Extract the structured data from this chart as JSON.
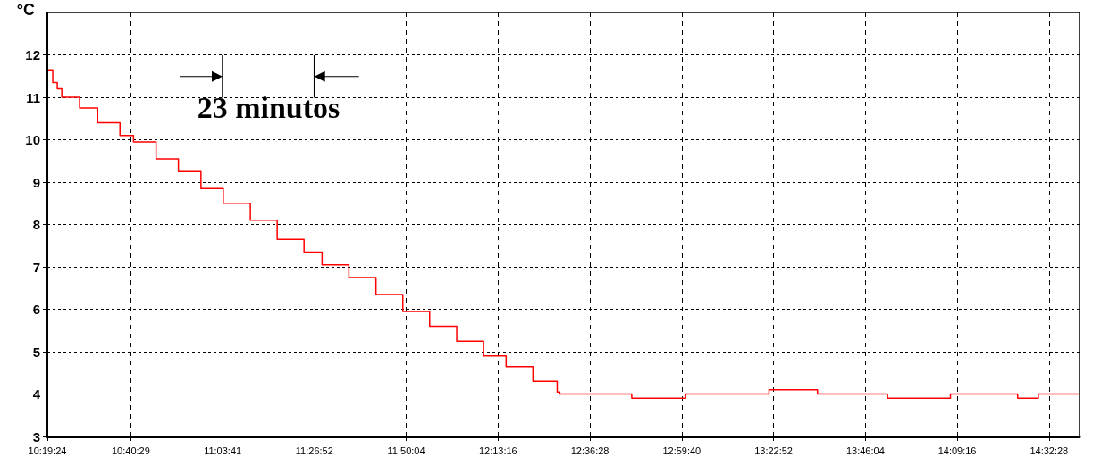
{
  "chart_data": {
    "type": "step",
    "ylabel": "°C",
    "annotations": [
      "23 minutos"
    ],
    "x": [
      10.327,
      10.346,
      10.365,
      10.384,
      10.459,
      10.535,
      10.629,
      10.686,
      10.781,
      10.875,
      10.97,
      11.064,
      11.178,
      11.291,
      11.404,
      11.48,
      11.593,
      11.707,
      11.82,
      11.933,
      12.047,
      12.16,
      12.255,
      12.368,
      12.47,
      12.481,
      12.784,
      13.011,
      13.362,
      13.566,
      13.861,
      14.126,
      14.409,
      14.496,
      14.665
    ],
    "series": [
      {
        "color": "#ff0000",
        "values": [
          11.65,
          11.35,
          11.2,
          11.0,
          10.75,
          10.4,
          10.1,
          9.95,
          9.55,
          9.25,
          8.85,
          8.5,
          8.1,
          7.65,
          7.35,
          7.05,
          6.75,
          6.35,
          5.95,
          5.6,
          5.25,
          4.9,
          4.65,
          4.3,
          4.05,
          4.0,
          3.9,
          4.0,
          4.1,
          4.0,
          3.9,
          4.0,
          3.9,
          4.0,
          4.0
        ]
      }
    ],
    "xlim": [
      10.3233,
      14.6697
    ],
    "ylim": [
      3,
      13
    ],
    "xticks": [
      {
        "value": 10.3233,
        "label": "10:19:24"
      },
      {
        "value": 10.6747,
        "label": "10:40:29"
      },
      {
        "value": 11.0614,
        "label": "11:03:41"
      },
      {
        "value": 11.4478,
        "label": "11:26:52"
      },
      {
        "value": 11.8344,
        "label": "11:50:04"
      },
      {
        "value": 12.2211,
        "label": "12:13:16"
      },
      {
        "value": 12.6078,
        "label": "12:36:28"
      },
      {
        "value": 12.9944,
        "label": "12:59:40"
      },
      {
        "value": 13.3811,
        "label": "13:22:52"
      },
      {
        "value": 13.7678,
        "label": "13:46:04"
      },
      {
        "value": 14.1544,
        "label": "14:09:16"
      },
      {
        "value": 14.5411,
        "label": "14:32:28"
      }
    ],
    "yticks": [
      3,
      4,
      5,
      6,
      7,
      8,
      9,
      10,
      11,
      12
    ],
    "grid": true
  }
}
